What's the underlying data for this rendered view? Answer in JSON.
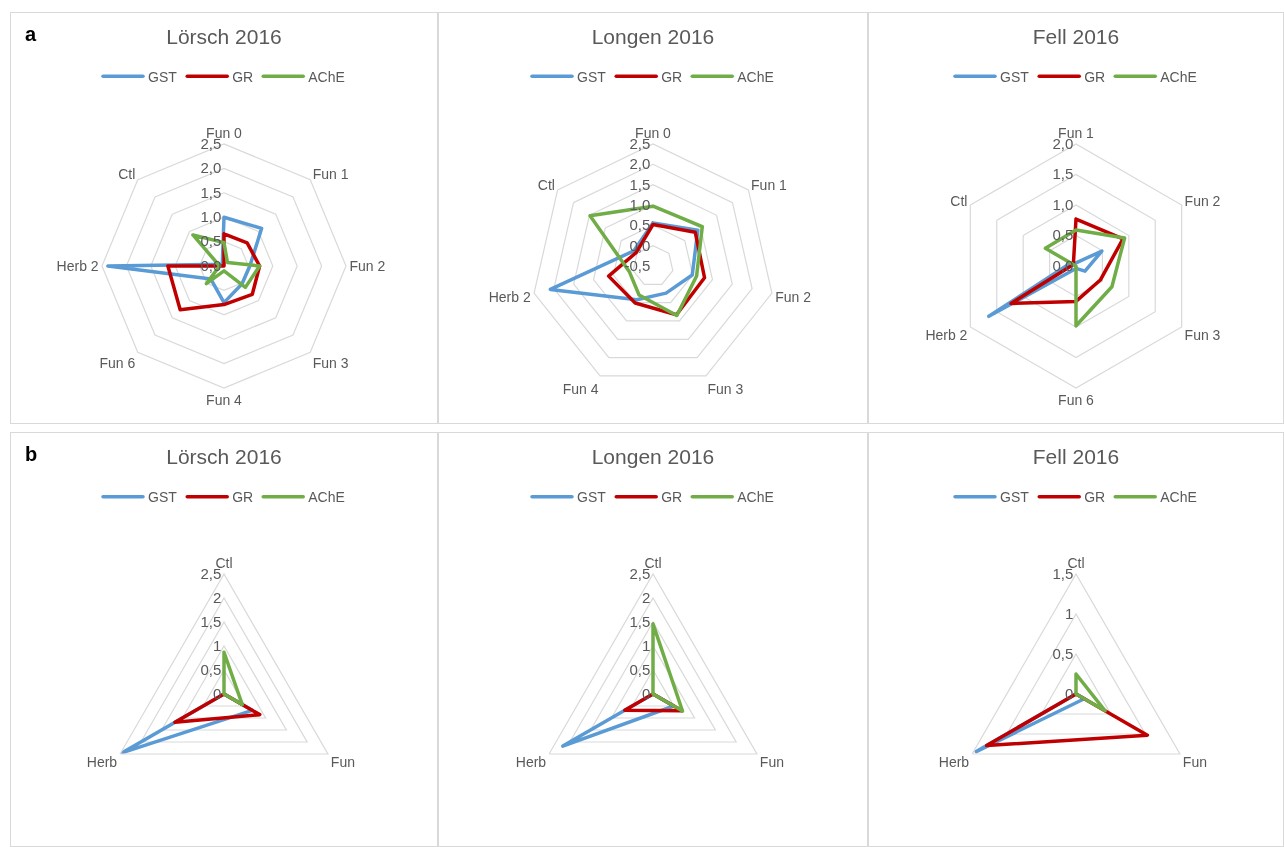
{
  "chart_data": [
    {
      "type": "radar",
      "title": "Lörsch 2016",
      "annotations": [
        "a"
      ],
      "categories": [
        "Fun 0",
        "Fun 1",
        "Fun 2",
        "Fun 3",
        "Fun 4",
        "Fun 6",
        "Herb 2",
        "Ctl"
      ],
      "ylim": [
        0,
        2.5
      ],
      "yticks": [
        {
          "value": 0,
          "label": "0,0"
        },
        {
          "value": 0.5,
          "label": "0,5"
        },
        {
          "value": 1,
          "label": "1,0"
        },
        {
          "value": 1.5,
          "label": "1,5"
        },
        {
          "value": 2,
          "label": "2,0"
        },
        {
          "value": 2.5,
          "label": "2,5"
        }
      ],
      "grid": true,
      "legend": "top",
      "series": [
        {
          "name": "GST",
          "color": "#5b9bd5",
          "values": [
            1.0,
            1.09,
            0.53,
            0.52,
            0.75,
            0.38,
            2.38,
            0.05
          ]
        },
        {
          "name": "GR",
          "color": "#c00000",
          "values": [
            0.66,
            0.67,
            0.73,
            0.82,
            0.79,
            1.27,
            1.15,
            0.0
          ]
        },
        {
          "name": "AChE",
          "color": "#70ad47",
          "values": [
            0.48,
            0.1,
            0.73,
            0.62,
            0.1,
            0.51,
            0.09,
            0.9
          ]
        }
      ]
    },
    {
      "type": "radar",
      "title": "Longen 2016",
      "categories": [
        "Fun 0",
        "Fun 1",
        "Fun 2",
        "Fun 3",
        "Fun 4",
        "Herb 2",
        "Ctl"
      ],
      "ylim": [
        -0.5,
        2.5
      ],
      "yticks": [
        {
          "value": -0.5,
          "label": "-0,5"
        },
        {
          "value": 0,
          "label": "0,0"
        },
        {
          "value": 0.5,
          "label": "0,5"
        },
        {
          "value": 1,
          "label": "1,0"
        },
        {
          "value": 1.5,
          "label": "1,5"
        },
        {
          "value": 2,
          "label": "2,0"
        },
        {
          "value": 2.5,
          "label": "2,5"
        }
      ],
      "grid": true,
      "legend": "top",
      "series": [
        {
          "name": "GST",
          "color": "#5b9bd5",
          "values": [
            0.56,
            0.91,
            0.49,
            0.24,
            0.42,
            2.09,
            0.1
          ]
        },
        {
          "name": "GR",
          "color": "#c00000",
          "values": [
            0.52,
            0.83,
            0.8,
            0.83,
            0.51,
            0.62,
            0.03
          ]
        },
        {
          "name": "AChE",
          "color": "#70ad47",
          "values": [
            0.97,
            1.05,
            0.6,
            0.85,
            0.29,
            0.1,
            1.48
          ]
        }
      ]
    },
    {
      "type": "radar",
      "title": "Fell 2016",
      "categories": [
        "Fun 1",
        "Fun 2",
        "Fun 3",
        "Fun 6",
        "Herb 2",
        "Ctl"
      ],
      "ylim": [
        0,
        2
      ],
      "yticks": [
        {
          "value": 0,
          "label": "0,0"
        },
        {
          "value": 0.5,
          "label": "0,5"
        },
        {
          "value": 1,
          "label": "1,0"
        },
        {
          "value": 1.5,
          "label": "1,5"
        },
        {
          "value": 2,
          "label": "2,0"
        }
      ],
      "grid": true,
      "legend": "top",
      "series": [
        {
          "name": "GST",
          "color": "#5b9bd5",
          "values": [
            0.05,
            0.49,
            0.17,
            0.04,
            1.65,
            0.1
          ]
        },
        {
          "name": "GR",
          "color": "#c00000",
          "values": [
            0.77,
            0.89,
            0.46,
            0.58,
            1.23,
            0.05
          ]
        },
        {
          "name": "AChE",
          "color": "#70ad47",
          "values": [
            0.59,
            0.92,
            0.68,
            0.98,
            0.0,
            0.58
          ]
        }
      ]
    },
    {
      "type": "radar",
      "title": "Lörsch 2016",
      "annotations": [
        "b"
      ],
      "categories": [
        "Ctl",
        "Fun",
        "Herb"
      ],
      "ylim": [
        0,
        2.5
      ],
      "yticks": [
        0,
        {
          "value": 0.5,
          "label": "0,5"
        },
        1,
        {
          "value": 1.5,
          "label": "1,5"
        },
        2,
        {
          "value": 2.5,
          "label": "2,5"
        }
      ],
      "grid": true,
      "legend": "top",
      "series": [
        {
          "name": "GST",
          "color": "#5b9bd5",
          "values": [
            0.0,
            0.68,
            2.44
          ]
        },
        {
          "name": "GR",
          "color": "#c00000",
          "values": [
            0.0,
            0.86,
            1.18
          ]
        },
        {
          "name": "AChE",
          "color": "#70ad47",
          "values": [
            0.87,
            0.44,
            0.0
          ]
        }
      ]
    },
    {
      "type": "radar",
      "title": "Longen 2016",
      "categories": [
        "Ctl",
        "Fun",
        "Herb"
      ],
      "ylim": [
        0,
        2.5
      ],
      "yticks": [
        0,
        {
          "value": 0.5,
          "label": "0,5"
        },
        1,
        {
          "value": 1.5,
          "label": "1,5"
        },
        2,
        {
          "value": 2.5,
          "label": "2,5"
        }
      ],
      "grid": true,
      "legend": "top",
      "series": [
        {
          "name": "GST",
          "color": "#5b9bd5",
          "values": [
            0.0,
            0.5,
            2.17
          ]
        },
        {
          "name": "GR",
          "color": "#c00000",
          "values": [
            0.0,
            0.7,
            0.68
          ]
        },
        {
          "name": "AChE",
          "color": "#70ad47",
          "values": [
            1.46,
            0.71,
            0.0
          ]
        }
      ]
    },
    {
      "type": "radar",
      "title": "Fell 2016",
      "categories": [
        "Ctl",
        "Fun",
        "Herb"
      ],
      "ylim": [
        0,
        1.5
      ],
      "yticks": [
        0,
        {
          "value": 0.5,
          "label": "0,5"
        },
        1,
        {
          "value": 1.5,
          "label": "1,5"
        }
      ],
      "grid": true,
      "legend": "top",
      "series": [
        {
          "name": "GST",
          "color": "#5b9bd5",
          "values": [
            0.0,
            0.12,
            1.44
          ]
        },
        {
          "name": "GR",
          "color": "#c00000",
          "values": [
            0.0,
            1.03,
            1.29
          ]
        },
        {
          "name": "AChE",
          "color": "#70ad47",
          "values": [
            0.25,
            0.42,
            0.0
          ]
        }
      ]
    }
  ]
}
